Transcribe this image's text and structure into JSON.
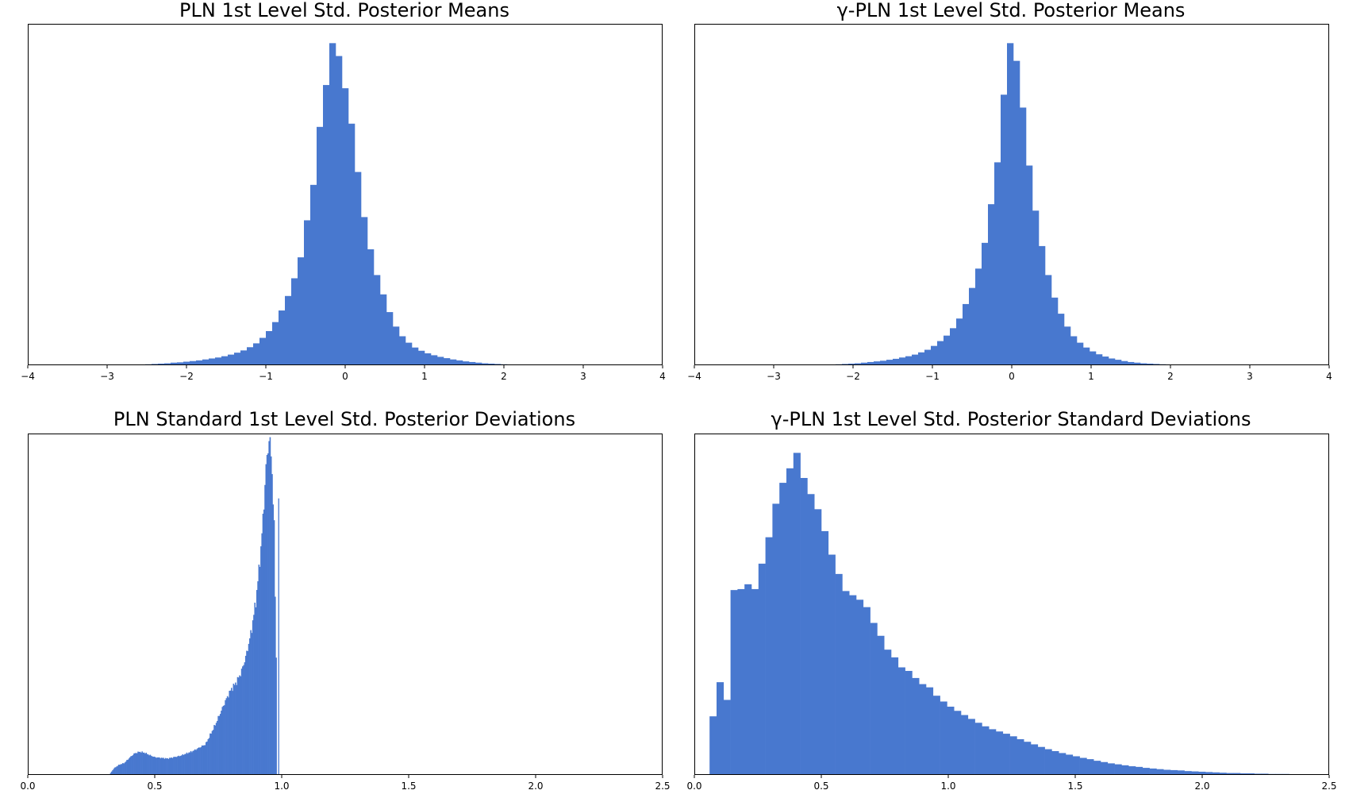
{
  "chart_data": [
    {
      "type": "bar",
      "title": "PLN 1st Level Std. Posterior Means",
      "xlabel": "",
      "ylabel": "",
      "xlim": [
        -4,
        4
      ],
      "ylim": [
        0,
        1.06
      ],
      "grid": false,
      "xticks": [
        -4,
        -3,
        -2,
        -1,
        0,
        1,
        2,
        3,
        4
      ],
      "xtick_labels": [
        "−4",
        "−3",
        "−2",
        "−1",
        "0",
        "1",
        "2",
        "3",
        "4"
      ],
      "color": "#4878cf",
      "bins": {
        "start": -3.0,
        "width": 0.08,
        "heights": [
          0.002,
          0.002,
          0.002,
          0.002,
          0.002,
          0.002,
          0.003,
          0.004,
          0.005,
          0.006,
          0.008,
          0.009,
          0.011,
          0.013,
          0.015,
          0.018,
          0.021,
          0.024,
          0.028,
          0.033,
          0.039,
          0.046,
          0.056,
          0.068,
          0.085,
          0.106,
          0.134,
          0.17,
          0.215,
          0.27,
          0.335,
          0.45,
          0.56,
          0.74,
          0.87,
          1.0,
          0.96,
          0.86,
          0.75,
          0.6,
          0.46,
          0.36,
          0.28,
          0.22,
          0.165,
          0.12,
          0.09,
          0.07,
          0.055,
          0.045,
          0.037,
          0.031,
          0.026,
          0.022,
          0.018,
          0.015,
          0.012,
          0.01,
          0.008,
          0.006,
          0.005,
          0.004,
          0.003,
          0.002,
          0.002,
          0.002,
          0.002,
          0.002,
          0.002,
          0.002,
          0.002,
          0.002,
          0.002,
          0.002,
          0.002
        ]
      }
    },
    {
      "type": "bar",
      "title": "γ-PLN 1st Level Std. Posterior Means",
      "xlabel": "",
      "ylabel": "",
      "xlim": [
        -4,
        4
      ],
      "ylim": [
        0,
        1.06
      ],
      "grid": false,
      "xticks": [
        -4,
        -3,
        -2,
        -1,
        0,
        1,
        2,
        3,
        4
      ],
      "xtick_labels": [
        "−4",
        "−3",
        "−2",
        "−1",
        "0",
        "1",
        "2",
        "3",
        "4"
      ],
      "color": "#4878cf",
      "bins": {
        "start": -2.7,
        "width": 0.08,
        "heights": [
          0.002,
          0.002,
          0.002,
          0.002,
          0.002,
          0.002,
          0.003,
          0.004,
          0.005,
          0.006,
          0.008,
          0.01,
          0.012,
          0.014,
          0.017,
          0.02,
          0.024,
          0.028,
          0.033,
          0.04,
          0.048,
          0.06,
          0.075,
          0.092,
          0.115,
          0.145,
          0.19,
          0.24,
          0.3,
          0.38,
          0.5,
          0.63,
          0.84,
          1.0,
          0.945,
          0.8,
          0.62,
          0.48,
          0.37,
          0.28,
          0.21,
          0.16,
          0.12,
          0.09,
          0.07,
          0.055,
          0.043,
          0.034,
          0.027,
          0.021,
          0.017,
          0.013,
          0.01,
          0.008,
          0.006,
          0.005,
          0.004,
          0.003,
          0.002,
          0.002,
          0.002,
          0.002,
          0.002,
          0.002,
          0.002,
          0.002
        ]
      }
    },
    {
      "type": "bar",
      "title": "PLN Standard 1st Level Std. Posterior Deviations",
      "xlabel": "",
      "ylabel": "",
      "xlim": [
        0.0,
        2.5
      ],
      "ylim": [
        0,
        1.0
      ],
      "grid": false,
      "xticks": [
        0.0,
        0.5,
        1.0,
        1.5,
        2.0,
        2.5
      ],
      "xtick_labels": [
        "0.0",
        "0.5",
        "1.0",
        "1.5",
        "2.0",
        "2.5"
      ],
      "color": "#4878cf",
      "curve": {
        "x": [
          0.32,
          0.34,
          0.36,
          0.38,
          0.4,
          0.42,
          0.44,
          0.46,
          0.48,
          0.5,
          0.55,
          0.6,
          0.65,
          0.7,
          0.72,
          0.74,
          0.76,
          0.78,
          0.8,
          0.82,
          0.84,
          0.86,
          0.88,
          0.9,
          0.92,
          0.93,
          0.94,
          0.95,
          0.96,
          0.97,
          0.98
        ],
        "height": [
          0.0,
          0.02,
          0.03,
          0.035,
          0.05,
          0.063,
          0.068,
          0.065,
          0.058,
          0.052,
          0.048,
          0.056,
          0.07,
          0.09,
          0.12,
          0.15,
          0.185,
          0.22,
          0.25,
          0.27,
          0.3,
          0.35,
          0.42,
          0.52,
          0.68,
          0.8,
          0.92,
          0.985,
          0.93,
          0.72,
          0.25
        ]
      },
      "spike": {
        "x": 0.988,
        "height": 0.81
      },
      "bin_width": 0.004
    },
    {
      "type": "bar",
      "title": "γ-PLN 1st Level Std. Posterior Standard Deviations",
      "xlabel": "",
      "ylabel": "",
      "xlim": [
        0.0,
        2.5
      ],
      "ylim": [
        0,
        1.06
      ],
      "grid": false,
      "xticks": [
        0.0,
        0.5,
        1.0,
        1.5,
        2.0,
        2.5
      ],
      "xtick_labels": [
        "0.0",
        "0.5",
        "1.0",
        "1.5",
        "2.0",
        "2.5"
      ],
      "color": "#4878cf",
      "bins": {
        "start": 0.06,
        "width": 0.0275,
        "heights": [
          0.182,
          0.288,
          0.233,
          0.574,
          0.577,
          0.592,
          0.577,
          0.656,
          0.738,
          0.842,
          0.907,
          0.952,
          1.0,
          0.922,
          0.872,
          0.825,
          0.757,
          0.684,
          0.624,
          0.571,
          0.558,
          0.544,
          0.521,
          0.472,
          0.432,
          0.389,
          0.365,
          0.334,
          0.323,
          0.301,
          0.282,
          0.272,
          0.246,
          0.228,
          0.212,
          0.199,
          0.186,
          0.174,
          0.162,
          0.151,
          0.142,
          0.135,
          0.128,
          0.12,
          0.111,
          0.103,
          0.095,
          0.087,
          0.08,
          0.074,
          0.068,
          0.063,
          0.058,
          0.053,
          0.049,
          0.044,
          0.04,
          0.036,
          0.033,
          0.03,
          0.027,
          0.025,
          0.022,
          0.02,
          0.018,
          0.016,
          0.015,
          0.014,
          0.012,
          0.011,
          0.01,
          0.009,
          0.008,
          0.007,
          0.006,
          0.006,
          0.005,
          0.005,
          0.004,
          0.004,
          0.003,
          0.003,
          0.003,
          0.002,
          0.002,
          0.002
        ]
      }
    }
  ]
}
